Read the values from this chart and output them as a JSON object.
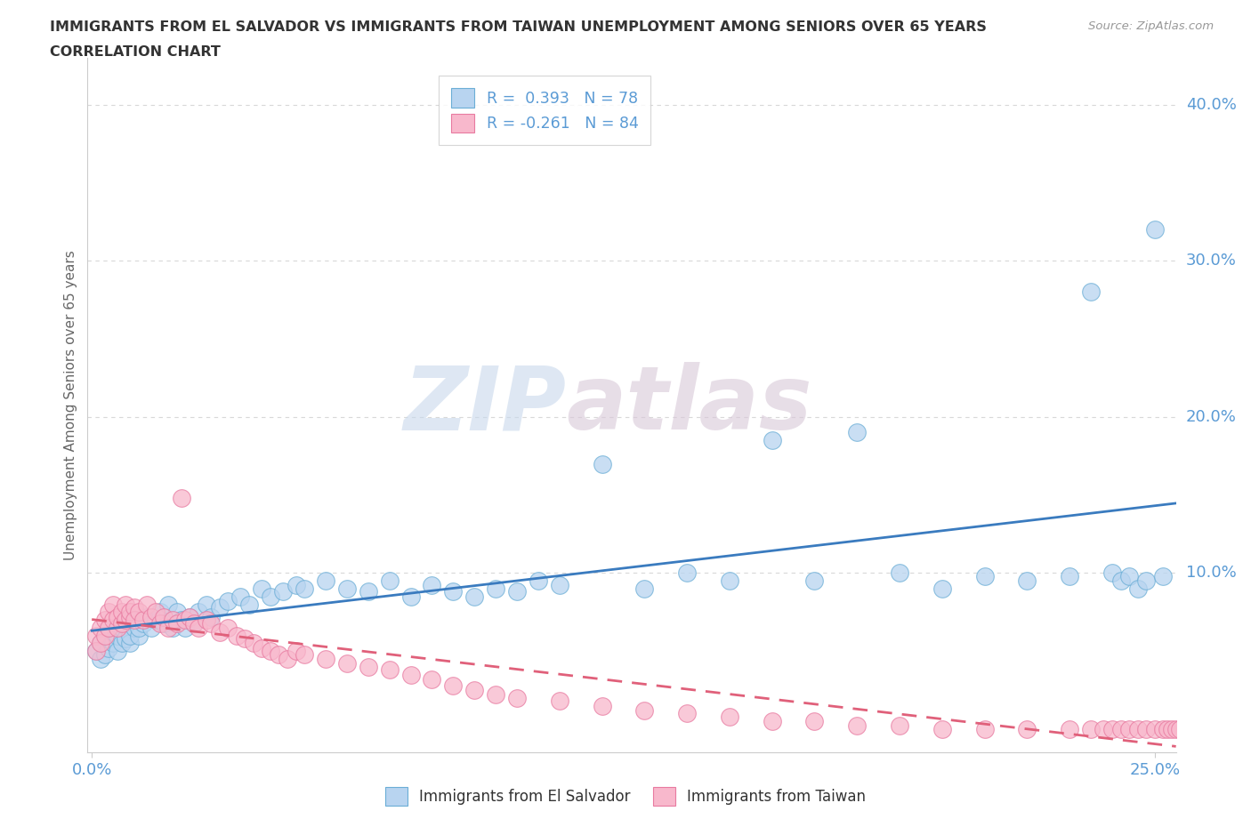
{
  "title_line1": "IMMIGRANTS FROM EL SALVADOR VS IMMIGRANTS FROM TAIWAN UNEMPLOYMENT AMONG SENIORS OVER 65 YEARS",
  "title_line2": "CORRELATION CHART",
  "source_text": "Source: ZipAtlas.com",
  "ylabel": "Unemployment Among Seniors over 65 years",
  "xlim": [
    -0.001,
    0.255
  ],
  "ylim": [
    -0.015,
    0.43
  ],
  "xticks": [
    0.0,
    0.25
  ],
  "xticklabels": [
    "0.0%",
    "25.0%"
  ],
  "yticks_right": [
    0.1,
    0.2,
    0.3,
    0.4
  ],
  "yticklabels_right": [
    "10.0%",
    "20.0%",
    "30.0%",
    "40.0%"
  ],
  "grid_yticks": [
    0.1,
    0.2,
    0.3,
    0.4
  ],
  "legend_r1": "R =  0.393   N = 78",
  "legend_r2": "R = -0.261   N = 84",
  "color_blue_fill": "#b8d4f0",
  "color_blue_edge": "#6baed6",
  "color_pink_fill": "#f8b8cc",
  "color_pink_edge": "#e87aa0",
  "color_blue_line": "#3a7bbf",
  "color_pink_line": "#e0607a",
  "watermark_zip": "ZIP",
  "watermark_atlas": "atlas",
  "background_color": "#ffffff",
  "grid_color": "#d8d8d8",
  "title_color": "#333333",
  "source_color": "#999999",
  "tick_color": "#5b9bd5",
  "ylabel_color": "#666666",
  "el_salvador_x": [
    0.001,
    0.002,
    0.002,
    0.003,
    0.003,
    0.004,
    0.004,
    0.005,
    0.005,
    0.006,
    0.006,
    0.007,
    0.007,
    0.008,
    0.008,
    0.009,
    0.009,
    0.01,
    0.01,
    0.011,
    0.011,
    0.012,
    0.013,
    0.014,
    0.015,
    0.016,
    0.017,
    0.018,
    0.019,
    0.02,
    0.021,
    0.022,
    0.023,
    0.024,
    0.025,
    0.027,
    0.028,
    0.03,
    0.032,
    0.035,
    0.037,
    0.04,
    0.042,
    0.045,
    0.048,
    0.05,
    0.055,
    0.06,
    0.065,
    0.07,
    0.075,
    0.08,
    0.085,
    0.09,
    0.095,
    0.1,
    0.105,
    0.11,
    0.12,
    0.13,
    0.14,
    0.15,
    0.16,
    0.17,
    0.18,
    0.19,
    0.2,
    0.21,
    0.22,
    0.23,
    0.235,
    0.24,
    0.242,
    0.244,
    0.246,
    0.248,
    0.25,
    0.252
  ],
  "el_salvador_y": [
    0.05,
    0.045,
    0.055,
    0.048,
    0.06,
    0.052,
    0.058,
    0.055,
    0.062,
    0.05,
    0.06,
    0.055,
    0.065,
    0.058,
    0.07,
    0.055,
    0.06,
    0.065,
    0.07,
    0.06,
    0.065,
    0.068,
    0.072,
    0.065,
    0.07,
    0.075,
    0.068,
    0.08,
    0.065,
    0.075,
    0.07,
    0.065,
    0.072,
    0.068,
    0.075,
    0.08,
    0.072,
    0.078,
    0.082,
    0.085,
    0.08,
    0.09,
    0.085,
    0.088,
    0.092,
    0.09,
    0.095,
    0.09,
    0.088,
    0.095,
    0.085,
    0.092,
    0.088,
    0.085,
    0.09,
    0.088,
    0.095,
    0.092,
    0.17,
    0.09,
    0.1,
    0.095,
    0.185,
    0.095,
    0.19,
    0.1,
    0.09,
    0.098,
    0.095,
    0.098,
    0.28,
    0.1,
    0.095,
    0.098,
    0.09,
    0.095,
    0.32,
    0.098
  ],
  "taiwan_x": [
    0.001,
    0.001,
    0.002,
    0.002,
    0.003,
    0.003,
    0.004,
    0.004,
    0.005,
    0.005,
    0.006,
    0.006,
    0.007,
    0.007,
    0.008,
    0.008,
    0.009,
    0.009,
    0.01,
    0.01,
    0.011,
    0.012,
    0.013,
    0.014,
    0.015,
    0.016,
    0.017,
    0.018,
    0.019,
    0.02,
    0.021,
    0.022,
    0.023,
    0.024,
    0.025,
    0.027,
    0.028,
    0.03,
    0.032,
    0.034,
    0.036,
    0.038,
    0.04,
    0.042,
    0.044,
    0.046,
    0.048,
    0.05,
    0.055,
    0.06,
    0.065,
    0.07,
    0.075,
    0.08,
    0.085,
    0.09,
    0.095,
    0.1,
    0.11,
    0.12,
    0.13,
    0.14,
    0.15,
    0.16,
    0.17,
    0.18,
    0.19,
    0.2,
    0.21,
    0.22,
    0.23,
    0.235,
    0.238,
    0.24,
    0.242,
    0.244,
    0.246,
    0.248,
    0.25,
    0.252,
    0.253,
    0.254,
    0.255,
    0.256
  ],
  "taiwan_y": [
    0.06,
    0.05,
    0.065,
    0.055,
    0.07,
    0.06,
    0.075,
    0.065,
    0.08,
    0.07,
    0.065,
    0.072,
    0.068,
    0.075,
    0.07,
    0.08,
    0.072,
    0.075,
    0.078,
    0.07,
    0.075,
    0.07,
    0.08,
    0.072,
    0.075,
    0.068,
    0.072,
    0.065,
    0.07,
    0.068,
    0.148,
    0.07,
    0.072,
    0.068,
    0.065,
    0.07,
    0.068,
    0.062,
    0.065,
    0.06,
    0.058,
    0.055,
    0.052,
    0.05,
    0.048,
    0.045,
    0.05,
    0.048,
    0.045,
    0.042,
    0.04,
    0.038,
    0.035,
    0.032,
    0.028,
    0.025,
    0.022,
    0.02,
    0.018,
    0.015,
    0.012,
    0.01,
    0.008,
    0.005,
    0.005,
    0.002,
    0.002,
    0.0,
    0.0,
    0.0,
    0.0,
    0.0,
    0.0,
    0.0,
    0.0,
    0.0,
    0.0,
    0.0,
    0.0,
    0.0,
    0.0,
    0.0,
    0.0,
    0.0
  ]
}
